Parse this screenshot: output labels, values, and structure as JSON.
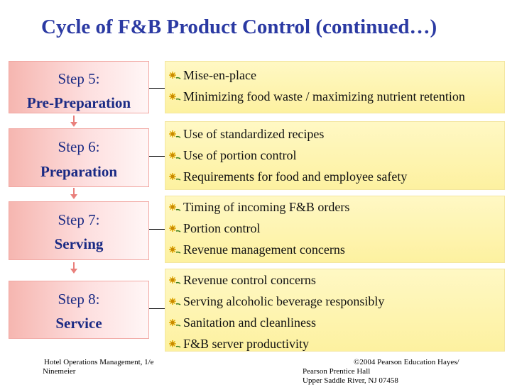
{
  "slide": {
    "title": "Cycle of F&B Product Control (continued…)",
    "bullet_icon": "flower-bullet-icon",
    "colors": {
      "title": "#2b3aa3",
      "step_text": "#1a2a84",
      "step_fill": "#f6b6b0",
      "box_fill": "#fdf1a0",
      "arrow": "#e9807c"
    },
    "steps": [
      {
        "number": "Step 5:",
        "name": "Pre-Preparation",
        "items": [
          "Mise-en-place",
          "Minimizing food waste / maximizing nutrient retention"
        ]
      },
      {
        "number": "Step 6:",
        "name": "Preparation",
        "items": [
          "Use of standardized recipes",
          "Use of portion control",
          "Requirements for food and employee safety"
        ]
      },
      {
        "number": "Step 7:",
        "name": "Serving",
        "items": [
          "Timing of incoming F&B orders",
          "Portion control",
          "Revenue management concerns"
        ]
      },
      {
        "number": "Step 8:",
        "name": "Service",
        "items": [
          "Revenue control concerns",
          "Serving alcoholic beverage responsibly",
          "Sanitation and cleanliness",
          "F&B server productivity"
        ]
      }
    ],
    "footer": {
      "left_line1": "Hotel Operations Management, 1/e",
      "left_line2": "Ninemeier",
      "right_line1": "©2004 Pearson Education Hayes/",
      "right_line2": "Pearson Prentice Hall",
      "right_line3": "Upper Saddle River, NJ 07458"
    }
  }
}
